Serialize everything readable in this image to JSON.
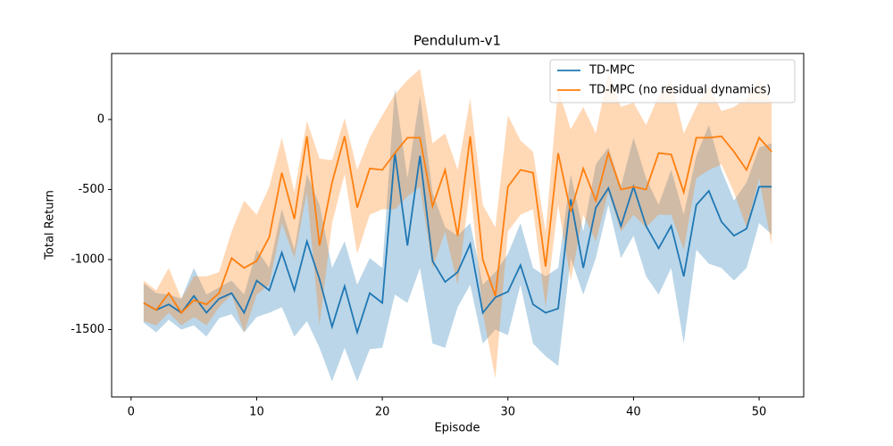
{
  "chart_data": {
    "type": "line",
    "title": "Pendulum-v1",
    "x_label": "Episode",
    "y_label": "Total Return",
    "x": [
      1,
      2,
      3,
      4,
      5,
      6,
      7,
      8,
      9,
      10,
      11,
      12,
      13,
      14,
      15,
      16,
      17,
      18,
      19,
      20,
      21,
      22,
      23,
      24,
      25,
      26,
      27,
      28,
      29,
      30,
      31,
      32,
      33,
      34,
      35,
      36,
      37,
      38,
      39,
      40,
      41,
      42,
      43,
      44,
      45,
      46,
      47,
      48,
      49,
      50,
      51
    ],
    "xlim": [
      -1.55,
      53.55
    ],
    "xticks": [
      0,
      10,
      20,
      30,
      40,
      50
    ],
    "ylim": [
      -1981,
      471
    ],
    "yticks": [
      -1500,
      -1000,
      -500,
      0
    ],
    "legend": "upper right",
    "band_opacity": 0.3,
    "series": [
      {
        "name": "TD-MPC",
        "color": "#1f77b4",
        "values": [
          -1310,
          -1360,
          -1320,
          -1380,
          -1260,
          -1380,
          -1280,
          -1240,
          -1380,
          -1150,
          -1220,
          -950,
          -1220,
          -870,
          -1140,
          -1480,
          -1190,
          -1520,
          -1240,
          -1310,
          -240,
          -900,
          -260,
          -1010,
          -1160,
          -1090,
          -890,
          -1380,
          -1270,
          -1230,
          -1040,
          -1320,
          -1380,
          -1350,
          -570,
          -1060,
          -630,
          -490,
          -760,
          -480,
          -760,
          -920,
          -760,
          -1120,
          -610,
          -510,
          -730,
          -830,
          -780,
          -480,
          -480
        ],
        "lower": [
          -1450,
          -1520,
          -1430,
          -1500,
          -1470,
          -1550,
          -1420,
          -1390,
          -1520,
          -1410,
          -1380,
          -1340,
          -1550,
          -1440,
          -1630,
          -1870,
          -1630,
          -1870,
          -1640,
          -1630,
          -1250,
          -1310,
          -1060,
          -1600,
          -1630,
          -1340,
          -1180,
          -1600,
          -1500,
          -1540,
          -1180,
          -1600,
          -1690,
          -1760,
          -990,
          -1250,
          -990,
          -610,
          -990,
          -830,
          -1120,
          -1250,
          -1060,
          -1600,
          -930,
          -1030,
          -1060,
          -1150,
          -1060,
          -740,
          -820
        ],
        "upper": [
          -1170,
          -1240,
          -1250,
          -1280,
          -1060,
          -1250,
          -1200,
          -1150,
          -1250,
          -930,
          -1060,
          -640,
          -930,
          -390,
          -610,
          -1060,
          -870,
          -1180,
          -990,
          -1060,
          220,
          -420,
          170,
          -520,
          -770,
          -830,
          -740,
          -1180,
          -1090,
          -960,
          -740,
          -1060,
          -1120,
          -1060,
          -390,
          -800,
          -320,
          -200,
          -480,
          -130,
          -420,
          -610,
          -360,
          -680,
          -260,
          -40,
          -360,
          -580,
          -450,
          -200,
          -170
        ]
      },
      {
        "name": "TD-MPC (no residual dynamics)",
        "color": "#ff7f0e",
        "values": [
          -1310,
          -1360,
          -1240,
          -1380,
          -1290,
          -1320,
          -1240,
          -990,
          -1060,
          -1010,
          -840,
          -380,
          -710,
          -120,
          -900,
          -450,
          -120,
          -630,
          -350,
          -360,
          -240,
          -130,
          -130,
          -620,
          -360,
          -830,
          -120,
          -1000,
          -1260,
          -480,
          -360,
          -380,
          -1050,
          -240,
          -660,
          -350,
          -580,
          -240,
          -500,
          -480,
          -500,
          -240,
          -250,
          -520,
          -130,
          -130,
          -120,
          -230,
          -360,
          -130,
          -230
        ],
        "lower": [
          -1440,
          -1470,
          -1380,
          -1470,
          -1410,
          -1470,
          -1340,
          -1250,
          -1520,
          -1250,
          -1180,
          -740,
          -990,
          -520,
          -1470,
          -740,
          -390,
          -960,
          -680,
          -640,
          -640,
          -550,
          -480,
          -1060,
          -800,
          -1180,
          -480,
          -1380,
          -1850,
          -800,
          -680,
          -640,
          -1340,
          -610,
          -1150,
          -680,
          -870,
          -520,
          -800,
          -680,
          -770,
          -680,
          -680,
          -930,
          -420,
          -360,
          -320,
          -520,
          -770,
          -420,
          -900
        ],
        "upper": [
          -1150,
          -1220,
          -1060,
          -1280,
          -1120,
          -1120,
          -1090,
          -800,
          -580,
          -680,
          -480,
          -130,
          -520,
          -10,
          -280,
          -290,
          10,
          -360,
          -130,
          30,
          180,
          280,
          360,
          -170,
          -100,
          -360,
          150,
          -610,
          -770,
          30,
          -150,
          -230,
          -800,
          220,
          -70,
          90,
          -100,
          340,
          90,
          120,
          -40,
          170,
          280,
          -100,
          90,
          250,
          60,
          90,
          150,
          280,
          120
        ]
      }
    ]
  }
}
